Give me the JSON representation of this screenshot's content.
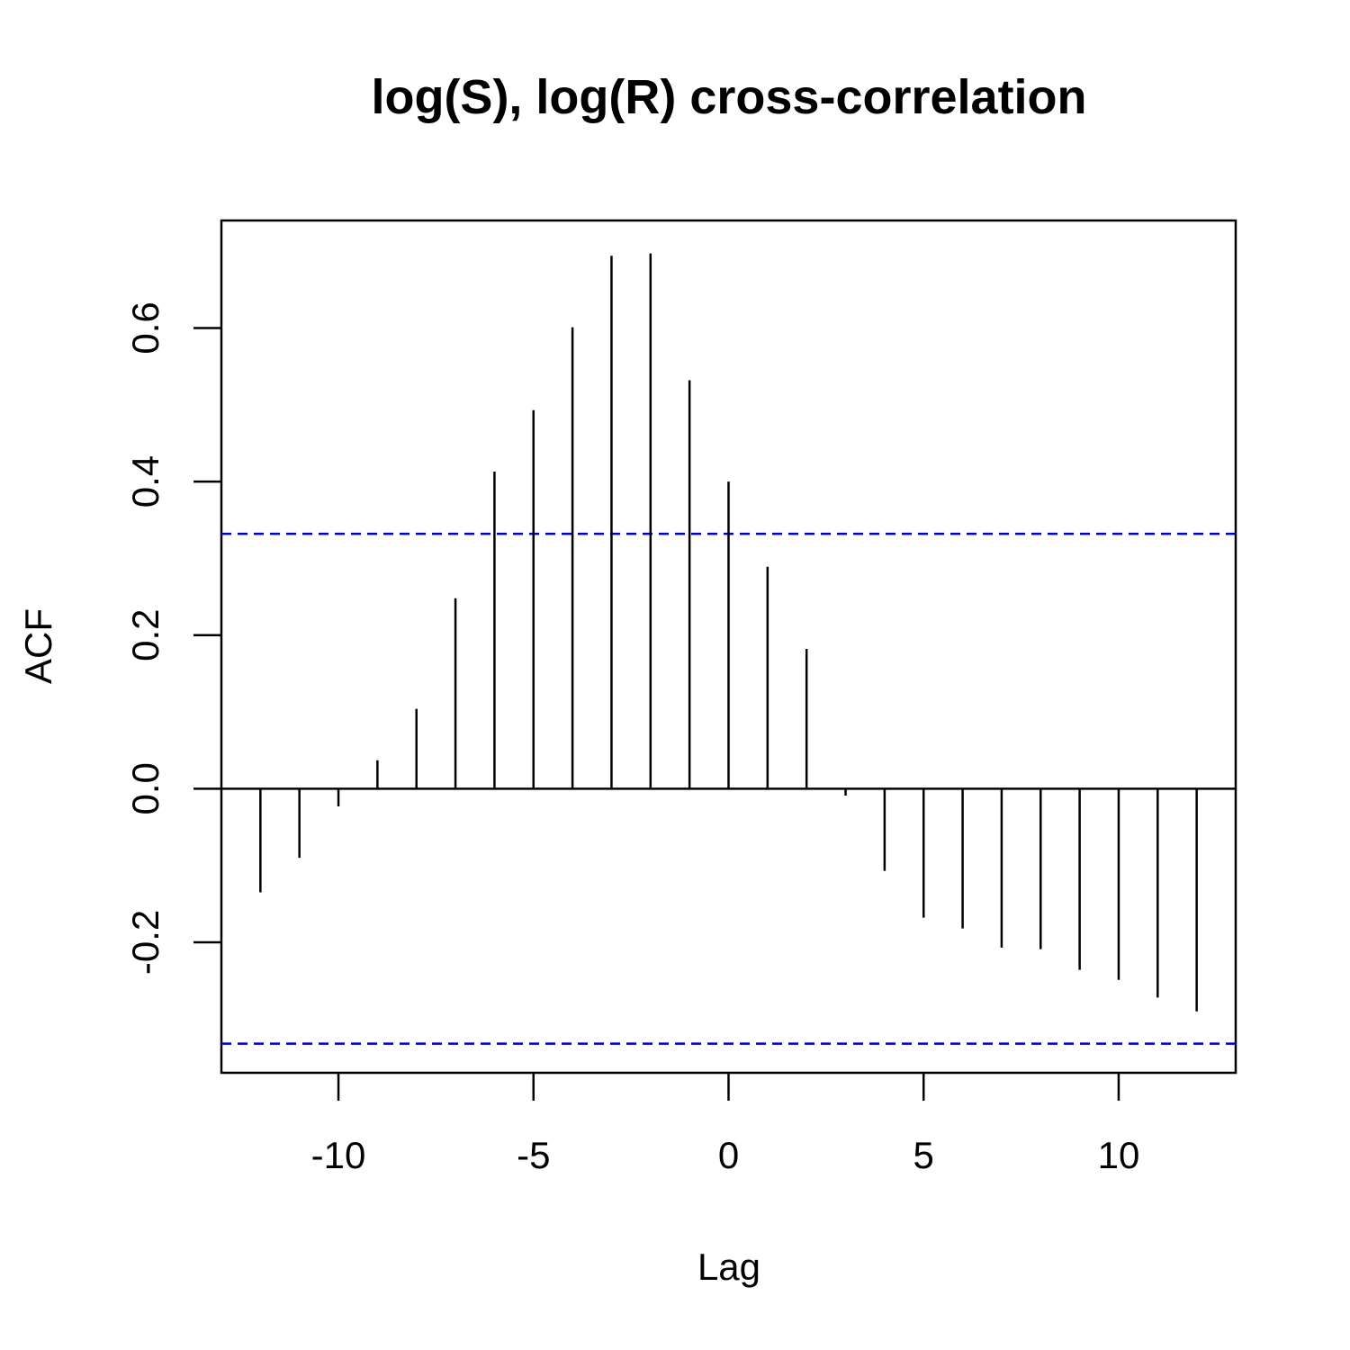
{
  "chart_data": {
    "type": "bar",
    "title": "log(S), log(R) cross-correlation",
    "xlabel": "Lag",
    "ylabel": "ACF",
    "xlim": [
      -13,
      13
    ],
    "ylim": [
      -0.37,
      0.74
    ],
    "x_ticks": [
      -10,
      -5,
      0,
      5,
      10
    ],
    "x_tick_labels": [
      "-10",
      "-5",
      "0",
      "5",
      "10"
    ],
    "y_ticks": [
      -0.2,
      0.0,
      0.2,
      0.4,
      0.6
    ],
    "y_tick_labels": [
      "-0.2",
      "0.0",
      "0.2",
      "0.4",
      "0.6"
    ],
    "x": [
      -12,
      -11,
      -10,
      -9,
      -8,
      -7,
      -6,
      -5,
      -4,
      -3,
      -2,
      -1,
      0,
      1,
      2,
      3,
      4,
      5,
      6,
      7,
      8,
      9,
      10,
      11,
      12
    ],
    "values": [
      -0.135,
      -0.09,
      -0.023,
      0.037,
      0.104,
      0.248,
      0.413,
      0.493,
      0.601,
      0.694,
      0.697,
      0.532,
      0.4,
      0.289,
      0.182,
      -0.009,
      -0.107,
      -0.168,
      -0.182,
      -0.207,
      -0.209,
      -0.236,
      -0.249,
      -0.272,
      -0.29
    ],
    "significance_bounds": [
      0.332,
      -0.332
    ],
    "bound_color": "#0000cc",
    "bar_color": "#000000",
    "zero_line": true,
    "grid": false,
    "legend": "none"
  }
}
